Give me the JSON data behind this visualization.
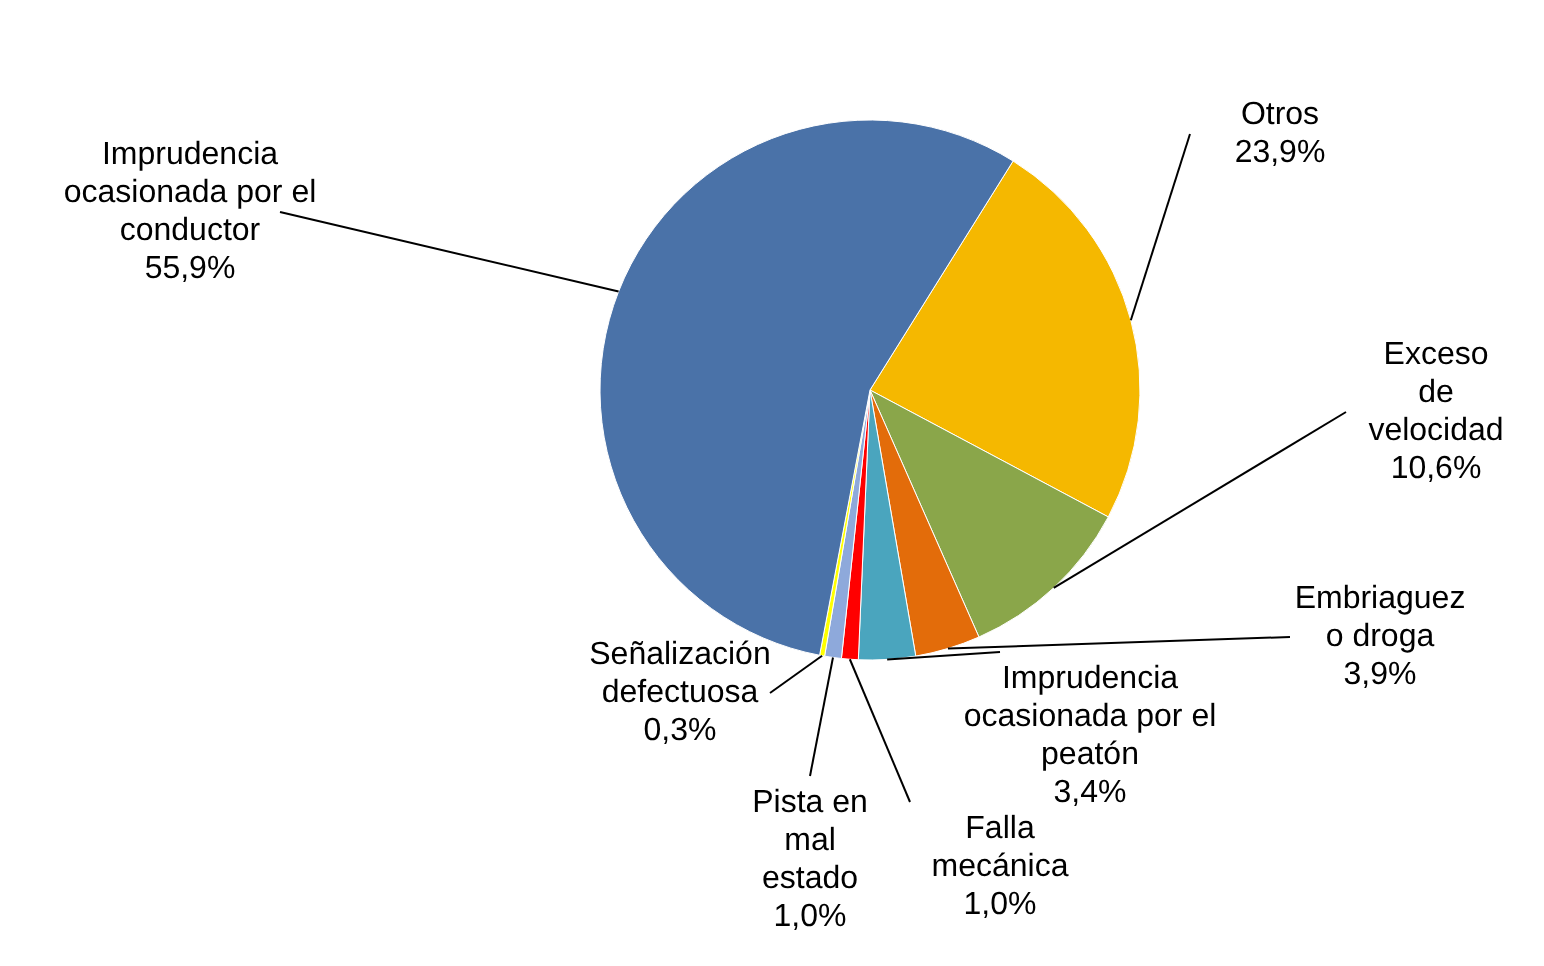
{
  "chart_data": {
    "type": "pie",
    "categories": [
      "Otros",
      "Exceso de velocidad",
      "Embriaguez o droga",
      "Imprudencia ocasionada por el peatón",
      "Falla mecánica",
      "Pista en mal estado",
      "Señalización defectuosa",
      "Imprudencia ocasionada por el conductor"
    ],
    "values": [
      23.9,
      10.6,
      3.9,
      3.4,
      1.0,
      1.0,
      0.3,
      55.9
    ],
    "colors": [
      "#f5b800",
      "#8aa64a",
      "#e36c0a",
      "#4aa5be",
      "#ff0000",
      "#8ea9db",
      "#ffff00",
      "#4a72a8"
    ],
    "value_labels": [
      "23,9%",
      "10,6%",
      "3,9%",
      "3,4%",
      "1,0%",
      "1,0%",
      "0,3%",
      "55,9%"
    ],
    "legend": false
  }
}
